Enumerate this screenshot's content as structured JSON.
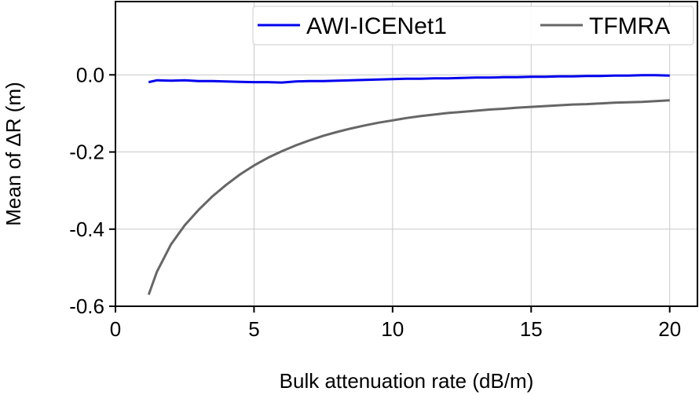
{
  "chart_data": {
    "type": "line",
    "xlabel": "Bulk attenuation rate (dB/m)",
    "ylabel": "Mean of ΔR (m)",
    "xlim": [
      0,
      21
    ],
    "ylim": [
      -0.6,
      0.19
    ],
    "xticks": [
      0,
      5,
      10,
      15,
      20
    ],
    "xtick_labels": [
      "0",
      "5",
      "10",
      "15",
      "20"
    ],
    "yticks": [
      -0.6,
      -0.4,
      -0.2,
      0.0
    ],
    "ytick_labels": [
      "-0.6",
      "-0.4",
      "-0.2",
      "0.0"
    ],
    "grid": true,
    "legend_position": "top-right",
    "series": [
      {
        "name": "AWI-ICENet1",
        "color": "#0000ee",
        "x": [
          1.2,
          1.5,
          2,
          2.5,
          3,
          3.5,
          4,
          4.5,
          5,
          5.5,
          6,
          6.5,
          7,
          7.5,
          8,
          8.5,
          9,
          9.5,
          10,
          10.5,
          11,
          11.5,
          12,
          12.5,
          13,
          13.5,
          14,
          14.5,
          15,
          15.5,
          16,
          16.5,
          17,
          17.5,
          18,
          18.5,
          19,
          19.5,
          20
        ],
        "y": [
          -0.019,
          -0.014,
          -0.015,
          -0.014,
          -0.016,
          -0.016,
          -0.017,
          -0.018,
          -0.019,
          -0.019,
          -0.02,
          -0.017,
          -0.016,
          -0.016,
          -0.015,
          -0.014,
          -0.013,
          -0.012,
          -0.011,
          -0.01,
          -0.01,
          -0.009,
          -0.009,
          -0.008,
          -0.007,
          -0.007,
          -0.006,
          -0.006,
          -0.005,
          -0.005,
          -0.004,
          -0.004,
          -0.003,
          -0.003,
          -0.002,
          -0.002,
          -0.001,
          -0.001,
          -0.002
        ]
      },
      {
        "name": "TFMRA",
        "color": "#666666",
        "x": [
          1.2,
          1.5,
          2,
          2.5,
          3,
          3.5,
          4,
          4.5,
          5,
          5.5,
          6,
          6.5,
          7,
          7.5,
          8,
          8.5,
          9,
          9.5,
          10,
          10.5,
          11,
          11.5,
          12,
          12.5,
          13,
          13.5,
          14,
          14.5,
          15,
          15.5,
          16,
          16.5,
          17,
          17.5,
          18,
          18.5,
          19,
          19.5,
          20
        ],
        "y": [
          -0.57,
          -0.51,
          -0.44,
          -0.39,
          -0.35,
          -0.315,
          -0.285,
          -0.258,
          -0.235,
          -0.215,
          -0.198,
          -0.183,
          -0.17,
          -0.158,
          -0.148,
          -0.139,
          -0.131,
          -0.124,
          -0.118,
          -0.112,
          -0.107,
          -0.103,
          -0.099,
          -0.096,
          -0.093,
          -0.09,
          -0.088,
          -0.085,
          -0.083,
          -0.081,
          -0.079,
          -0.077,
          -0.076,
          -0.074,
          -0.072,
          -0.071,
          -0.07,
          -0.068,
          -0.066
        ]
      }
    ]
  }
}
